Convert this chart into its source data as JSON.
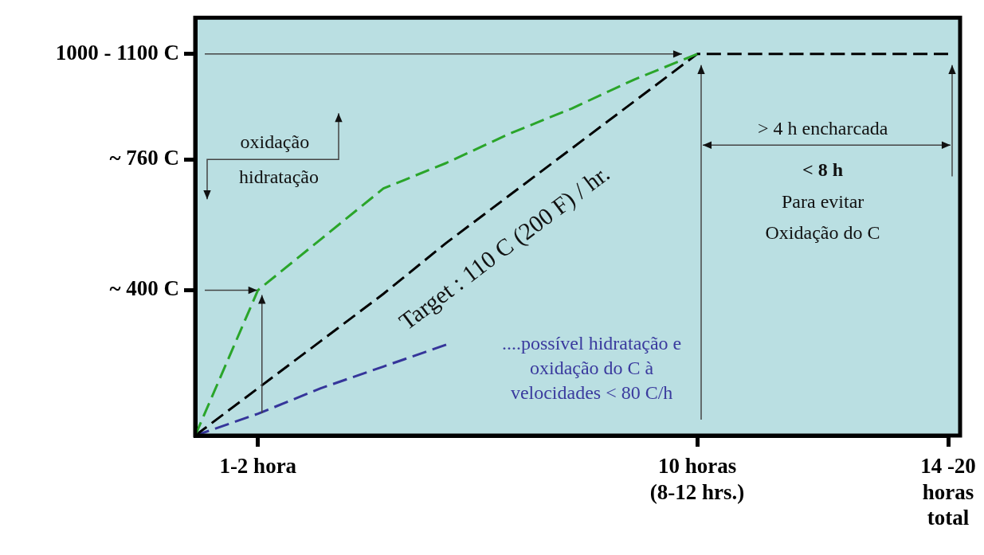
{
  "chart_data": {
    "type": "line",
    "categories": [
      null,
      "1-2 hora",
      null,
      null,
      null,
      null,
      null,
      null,
      "10 horas\n(8-12 hrs.)",
      null,
      null,
      null,
      "14 -20\nhoras\ntotal"
    ],
    "series": [
      {
        "color": "#2aa52a",
        "values": [
          0,
          400,
          540,
          680,
          750,
          830,
          900,
          980,
          1050,
          null,
          null,
          null,
          null
        ]
      },
      {
        "color": "#000000",
        "values": [
          0,
          130,
          260,
          390,
          530,
          660,
          790,
          920,
          1050,
          1050,
          1050,
          1050,
          1050
        ]
      },
      {
        "color": "#35359a",
        "values": [
          0,
          60,
          130,
          190,
          250,
          null,
          null,
          null,
          null,
          null,
          null,
          null,
          null
        ]
      }
    ],
    "ylim": [
      0,
      1150
    ],
    "yticks": [
      {
        "value": 400,
        "label": "~ 400 C"
      },
      {
        "value": 760,
        "label": "~ 760 C"
      },
      {
        "value": 1050,
        "label": "1000 - 1100 C"
      }
    ],
    "annotations": [
      "Target : 110 C (200 F) / hr.",
      "oxidação",
      "hidratação",
      "> 4 h encharcada",
      "< 8 h",
      "Para evitar",
      "Oxidação do C",
      "....possível hidratação e\noxidação do C à\nvelocidades < 80 C/h"
    ],
    "line_style": "dashed",
    "marker": "none",
    "grid": false,
    "legend": false
  }
}
